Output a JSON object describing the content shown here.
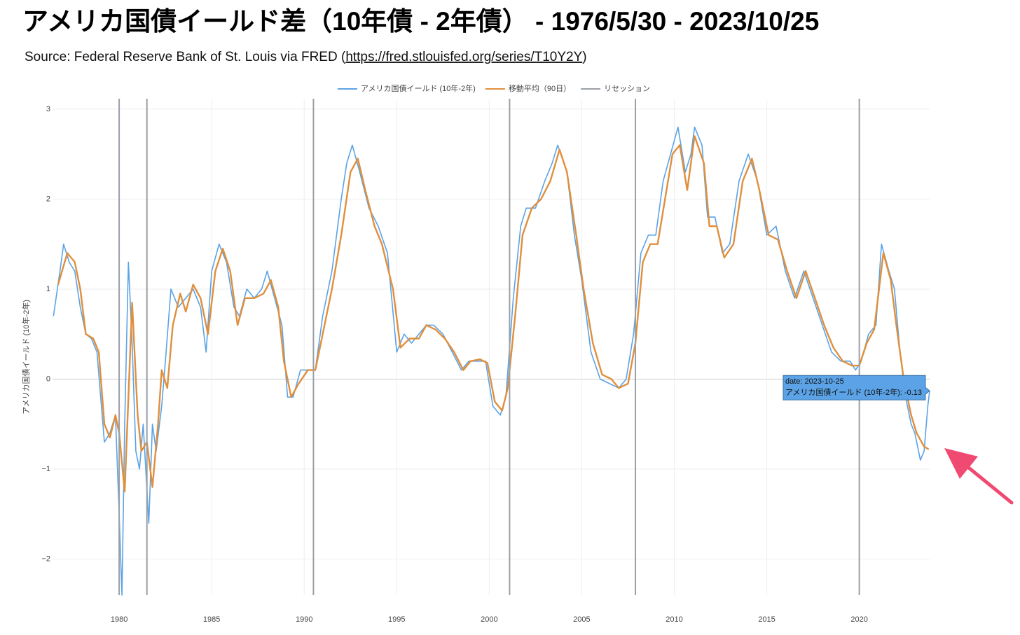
{
  "chart_data": {
    "type": "line",
    "title": "アメリカ国債イールド差（10年債 - 2年債） - 1976/5/30 - 2023/10/25",
    "subtitle_prefix": "Source: Federal Reserve Bank of St. Louis via FRED (",
    "subtitle_link": "https://fred.stlouisfed.org/series/T10Y2Y",
    "subtitle_suffix": ")",
    "y_label": "アメリカ国債イールド (10年-2年)",
    "xlim": [
      1976.4,
      2023.8
    ],
    "xticks": [
      1980,
      1985,
      1990,
      1995,
      2000,
      2005,
      2010,
      2015,
      2020
    ],
    "ylim": [
      -2.4,
      3.1
    ],
    "yticks": [
      {
        "value": -2,
        "label": "−2"
      },
      {
        "value": -1,
        "label": "−1"
      },
      0,
      1,
      2,
      3
    ],
    "grid": true,
    "legend": "top",
    "series": [
      {
        "name": "アメリカ国債イールド (10年-2年)",
        "color": "#5ba3e6",
        "x": [
          1976.45,
          1976.8,
          1977.0,
          1977.3,
          1977.6,
          1977.9,
          1978.2,
          1978.5,
          1978.8,
          1979.0,
          1979.2,
          1979.5,
          1979.8,
          1980.0,
          1980.15,
          1980.3,
          1980.5,
          1980.7,
          1980.9,
          1981.1,
          1981.3,
          1981.6,
          1981.8,
          1982.0,
          1982.3,
          1982.5,
          1982.8,
          1983.2,
          1983.6,
          1984.0,
          1984.4,
          1984.7,
          1985.0,
          1985.4,
          1985.8,
          1986.2,
          1986.5,
          1986.9,
          1987.3,
          1987.7,
          1988.0,
          1988.4,
          1988.8,
          1989.1,
          1989.4,
          1989.8,
          1990.2,
          1990.6,
          1991.0,
          1991.5,
          1992.0,
          1992.3,
          1992.6,
          1993.0,
          1993.5,
          1994.0,
          1994.5,
          1995.0,
          1995.4,
          1995.8,
          1996.2,
          1996.6,
          1997.0,
          1997.5,
          1998.0,
          1998.5,
          1998.9,
          1999.4,
          1999.8,
          2000.2,
          2000.6,
          2000.9,
          2001.3,
          2001.7,
          2002.0,
          2002.5,
          2003.0,
          2003.4,
          2003.7,
          2004.2,
          2004.6,
          2005.0,
          2005.5,
          2006.0,
          2006.5,
          2007.0,
          2007.4,
          2007.8,
          2008.2,
          2008.6,
          2009.0,
          2009.4,
          2009.8,
          2010.2,
          2010.6,
          2010.9,
          2011.1,
          2011.5,
          2011.8,
          2012.2,
          2012.6,
          2013.0,
          2013.5,
          2014.0,
          2014.5,
          2015.0,
          2015.5,
          2016.0,
          2016.5,
          2017.0,
          2017.5,
          2018.0,
          2018.5,
          2019.0,
          2019.5,
          2019.8,
          2020.1,
          2020.5,
          2020.9,
          2021.2,
          2021.6,
          2021.9,
          2022.2,
          2022.5,
          2022.8,
          2023.0,
          2023.3,
          2023.5,
          2023.7,
          2023.8
        ],
        "values": [
          0.7,
          1.2,
          1.5,
          1.3,
          1.2,
          0.8,
          0.5,
          0.45,
          0.3,
          -0.2,
          -0.7,
          -0.6,
          -0.4,
          -1.5,
          -2.4,
          -0.5,
          1.3,
          0.4,
          -0.8,
          -1.0,
          -0.5,
          -1.6,
          -0.5,
          -0.8,
          -0.3,
          0.2,
          1.0,
          0.8,
          0.9,
          1.0,
          0.8,
          0.3,
          1.2,
          1.5,
          1.3,
          0.8,
          0.7,
          1.0,
          0.9,
          1.0,
          1.2,
          0.9,
          0.6,
          -0.2,
          -0.2,
          0.1,
          0.1,
          0.1,
          0.7,
          1.2,
          2.0,
          2.4,
          2.6,
          2.3,
          1.9,
          1.7,
          1.4,
          0.3,
          0.5,
          0.4,
          0.5,
          0.6,
          0.6,
          0.5,
          0.3,
          0.1,
          0.2,
          0.2,
          0.2,
          -0.3,
          -0.4,
          -0.2,
          0.9,
          1.7,
          1.9,
          1.9,
          2.2,
          2.4,
          2.6,
          2.3,
          1.6,
          1.1,
          0.3,
          0.0,
          -0.05,
          -0.1,
          0.0,
          0.5,
          1.4,
          1.6,
          1.6,
          2.2,
          2.5,
          2.8,
          2.3,
          2.5,
          2.8,
          2.6,
          1.8,
          1.8,
          1.4,
          1.5,
          2.2,
          2.5,
          2.2,
          1.6,
          1.7,
          1.2,
          0.9,
          1.2,
          0.9,
          0.6,
          0.3,
          0.2,
          0.2,
          0.1,
          0.2,
          0.5,
          0.6,
          1.5,
          1.2,
          1.0,
          0.3,
          -0.2,
          -0.5,
          -0.6,
          -0.9,
          -0.8,
          -0.3,
          -0.13
        ]
      },
      {
        "name": "移動平均（90日）",
        "color": "#e08f3c",
        "x": [
          1976.7,
          1977.2,
          1977.6,
          1977.9,
          1978.2,
          1978.6,
          1978.9,
          1979.2,
          1979.5,
          1979.8,
          1980.0,
          1980.3,
          1980.7,
          1981.0,
          1981.2,
          1981.5,
          1981.8,
          1982.1,
          1982.3,
          1982.6,
          1982.9,
          1983.3,
          1983.6,
          1984.0,
          1984.4,
          1984.8,
          1985.2,
          1985.6,
          1986.0,
          1986.4,
          1986.8,
          1987.3,
          1987.8,
          1988.2,
          1988.6,
          1988.9,
          1989.3,
          1989.7,
          1990.2,
          1990.6,
          1991.0,
          1991.5,
          1992.0,
          1992.5,
          1992.9,
          1993.3,
          1993.8,
          1994.2,
          1994.8,
          1995.2,
          1995.7,
          1996.2,
          1996.6,
          1997.1,
          1997.6,
          1998.1,
          1998.6,
          1999.0,
          1999.5,
          1999.9,
          2000.3,
          2000.7,
          2001.0,
          2001.4,
          2001.8,
          2002.3,
          2002.8,
          2003.3,
          2003.8,
          2004.2,
          2004.7,
          2005.1,
          2005.6,
          2006.1,
          2006.6,
          2007.0,
          2007.5,
          2007.9,
          2008.3,
          2008.7,
          2009.1,
          2009.5,
          2009.9,
          2010.3,
          2010.7,
          2011.1,
          2011.6,
          2011.9,
          2012.3,
          2012.7,
          2013.2,
          2013.7,
          2014.2,
          2014.6,
          2015.1,
          2015.6,
          2016.1,
          2016.6,
          2017.1,
          2017.6,
          2018.1,
          2018.6,
          2019.1,
          2019.6,
          2020.0,
          2020.4,
          2020.8,
          2021.3,
          2021.7,
          2022.0,
          2022.4,
          2022.8,
          2023.1,
          2023.5,
          2023.75
        ],
        "values": [
          1.05,
          1.4,
          1.3,
          1.0,
          0.5,
          0.45,
          0.3,
          -0.5,
          -0.65,
          -0.4,
          -0.6,
          -1.25,
          0.85,
          -0.4,
          -0.8,
          -0.7,
          -1.2,
          -0.5,
          0.1,
          -0.1,
          0.6,
          0.95,
          0.75,
          1.05,
          0.9,
          0.5,
          1.2,
          1.45,
          1.2,
          0.6,
          0.9,
          0.9,
          0.95,
          1.1,
          0.8,
          0.2,
          -0.2,
          -0.05,
          0.1,
          0.1,
          0.5,
          1.0,
          1.6,
          2.3,
          2.45,
          2.1,
          1.7,
          1.5,
          1.0,
          0.35,
          0.45,
          0.45,
          0.6,
          0.55,
          0.45,
          0.3,
          0.1,
          0.2,
          0.22,
          0.18,
          -0.25,
          -0.35,
          -0.1,
          0.7,
          1.6,
          1.9,
          2.0,
          2.2,
          2.55,
          2.3,
          1.6,
          1.0,
          0.4,
          0.05,
          0.0,
          -0.1,
          -0.05,
          0.4,
          1.3,
          1.5,
          1.5,
          2.0,
          2.5,
          2.6,
          2.1,
          2.7,
          2.4,
          1.7,
          1.7,
          1.35,
          1.5,
          2.2,
          2.45,
          2.1,
          1.6,
          1.55,
          1.2,
          0.9,
          1.2,
          0.9,
          0.6,
          0.35,
          0.2,
          0.15,
          0.15,
          0.4,
          0.55,
          1.4,
          1.1,
          0.6,
          0.0,
          -0.4,
          -0.6,
          -0.75,
          -0.78
        ]
      },
      {
        "name": "リセッション",
        "color": "#9aa0a6",
        "kind": "vline",
        "x": [
          1980.0,
          1981.5,
          1990.5,
          2001.1,
          2007.9,
          2020.0
        ]
      }
    ],
    "tooltip": [
      "date: 2023-10-25",
      "アメリカ国債イールド (10年-2年): -0.13"
    ],
    "tooltip_color": "#5ba3e6",
    "arrow_color": "#ef4a72"
  }
}
